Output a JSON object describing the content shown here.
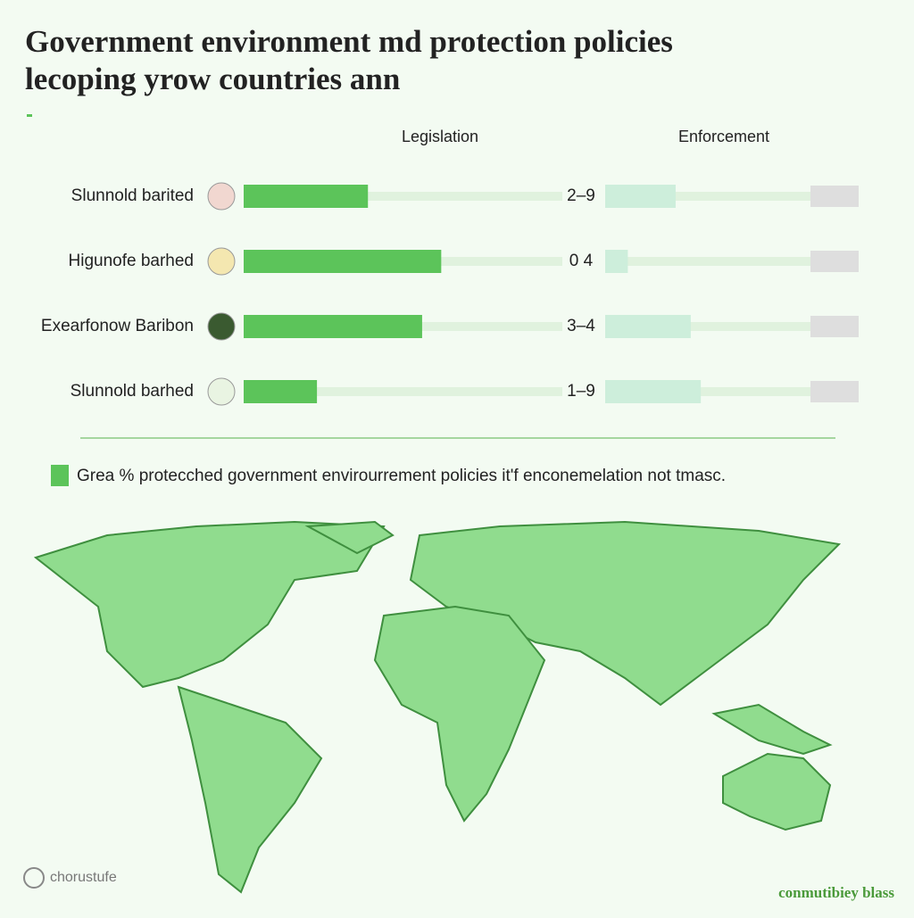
{
  "chart_data": {
    "type": "bar",
    "title": [
      "Government environment md protection policies",
      "lecoping yrow countries ann"
    ],
    "categories": [
      "Slunnold barited",
      "Higunofe barhed",
      "Exearfonow Baribon",
      "Slunnold barhed"
    ],
    "series": [
      {
        "name": "Legislation",
        "color": "#5cc45a",
        "values": [
          39,
          62,
          56,
          23
        ]
      },
      {
        "name": "Enforcement",
        "color": "#cdeedb",
        "values": [
          28,
          9,
          34,
          38
        ]
      }
    ],
    "xlim": [
      0,
      100
    ],
    "annotations": [
      "2–9",
      "0 4",
      "3–4",
      "1–9"
    ],
    "legend": "Grea % protecched government envirourrement policies it'f enconemelation not tmasc.",
    "footer_left": "chorustufe",
    "footer_right": "conmutibiey blass"
  }
}
